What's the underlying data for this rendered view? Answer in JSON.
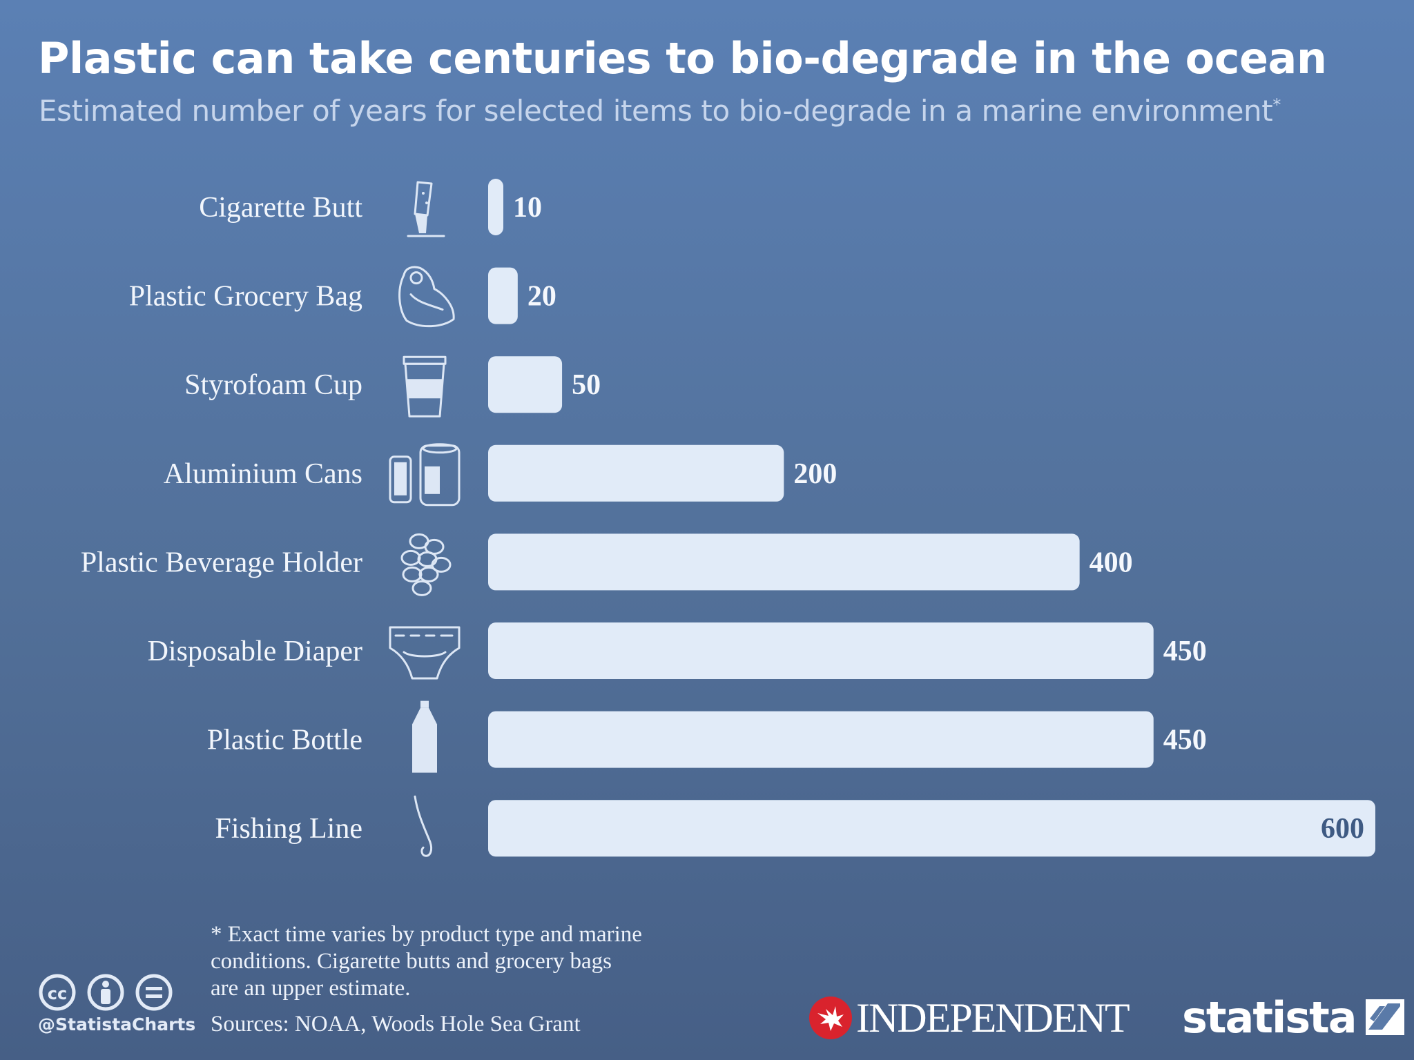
{
  "title": "Plastic can take centuries to bio-degrade in the ocean",
  "subtitle": "Estimated number of years for selected items to bio-degrade in a marine environment",
  "subtitle_mark": "*",
  "footnote": "* Exact time varies by product type and marine\n   conditions. Cigarette butts and grocery bags\n   are an upper estimate.",
  "sources": "Sources: NOAA, Woods Hole Sea Grant",
  "handle": "@StatistaCharts",
  "brands": {
    "independent": "INDEPENDENT",
    "statista": "statista"
  },
  "license_icons": [
    "cc-icon",
    "by-icon",
    "nd-icon"
  ],
  "colors": {
    "background_top": "#5b80b4",
    "background_bottom": "#465f86",
    "bar": "#e1ebf8",
    "independent_red": "#d9232d"
  },
  "chart_data": {
    "type": "bar",
    "orientation": "horizontal",
    "title": "Plastic can take centuries to bio-degrade in the ocean",
    "subtitle": "Estimated number of years for selected items to bio-degrade in a marine environment*",
    "categories": [
      "Cigarette Butt",
      "Plastic Grocery Bag",
      "Styrofoam Cup",
      "Aluminium Cans",
      "Plastic Beverage Holder",
      "Disposable Diaper",
      "Plastic Bottle",
      "Fishing Line"
    ],
    "values": [
      10,
      20,
      50,
      200,
      400,
      450,
      450,
      600
    ],
    "icons": [
      "cigarette-icon",
      "grocery-bag-icon",
      "cup-icon",
      "cans-icon",
      "beverage-holder-icon",
      "diaper-icon",
      "bottle-icon",
      "fishing-line-icon"
    ],
    "xlim": [
      0,
      600
    ],
    "grid": false,
    "legend": "none"
  }
}
